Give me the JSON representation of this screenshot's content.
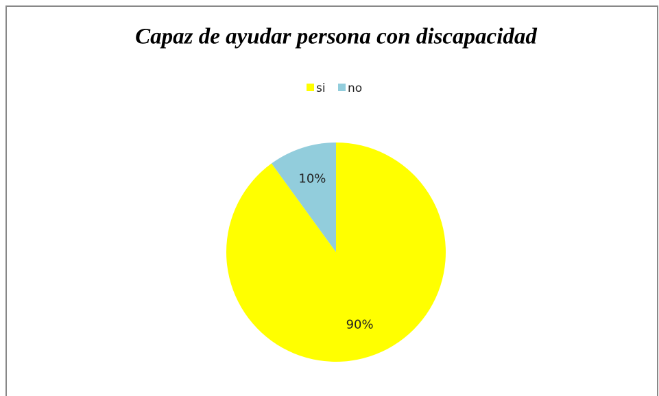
{
  "chart_data": {
    "type": "pie",
    "title": "Capaz de ayudar persona con discapacidad",
    "categories": [
      "si",
      "no"
    ],
    "values": [
      90,
      10
    ],
    "value_labels": [
      "90%",
      "10%"
    ],
    "colors": [
      "#ffff00",
      "#92cddc"
    ],
    "legend": "top"
  }
}
